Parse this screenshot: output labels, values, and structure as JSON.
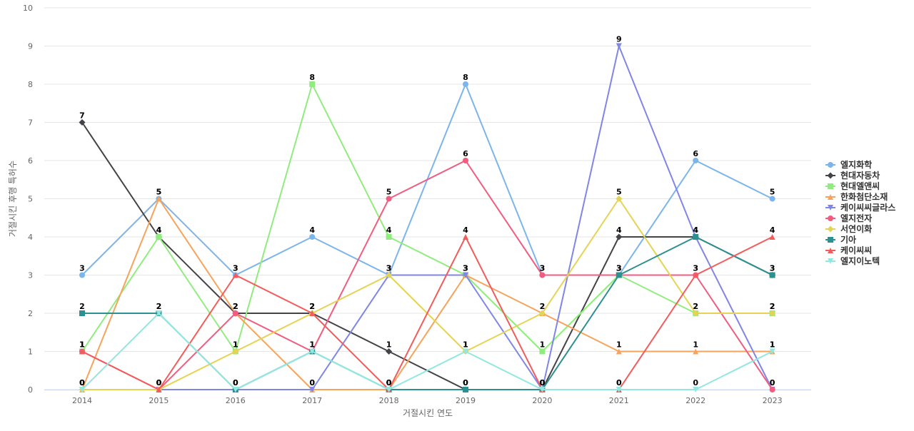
{
  "chart_data": {
    "type": "line",
    "title": "",
    "xlabel": "거절시킨 연도",
    "ylabel": "거절시킨 후행 특허수",
    "x": [
      "2014",
      "2015",
      "2016",
      "2017",
      "2018",
      "2019",
      "2020",
      "2021",
      "2022",
      "2023"
    ],
    "ylim": [
      0,
      10
    ],
    "yticks": [
      0,
      1,
      2,
      3,
      4,
      5,
      6,
      7,
      8,
      9,
      10
    ],
    "grid": true,
    "legend_position": "right",
    "data_labels": true,
    "series": [
      {
        "name": "엘지화학",
        "color": "#7cb5ec",
        "marker": "circle",
        "values": [
          3,
          5,
          3,
          4,
          3,
          8,
          3,
          3,
          6,
          5
        ]
      },
      {
        "name": "현대자동차",
        "color": "#434348",
        "marker": "diamond",
        "values": [
          7,
          4,
          2,
          2,
          1,
          0,
          0,
          4,
          4,
          3
        ]
      },
      {
        "name": "현대엘앤씨",
        "color": "#90ed7d",
        "marker": "square",
        "values": [
          1,
          4,
          1,
          8,
          4,
          3,
          1,
          3,
          2,
          2
        ]
      },
      {
        "name": "한화첨단소재",
        "color": "#f7a35c",
        "marker": "triangle",
        "values": [
          0,
          5,
          2,
          0,
          0,
          3,
          2,
          1,
          1,
          1
        ]
      },
      {
        "name": "케이씨씨글라스",
        "color": "#8085e9",
        "marker": "triangle-down",
        "values": [
          0,
          0,
          0,
          0,
          3,
          3,
          0,
          9,
          4,
          0
        ]
      },
      {
        "name": "엘지전자",
        "color": "#f15c80",
        "marker": "circle",
        "values": [
          1,
          0,
          2,
          1,
          5,
          6,
          3,
          3,
          3,
          0
        ]
      },
      {
        "name": "서연이화",
        "color": "#e4d354",
        "marker": "diamond",
        "values": [
          0,
          0,
          1,
          2,
          3,
          1,
          2,
          5,
          2,
          2
        ]
      },
      {
        "name": "기아",
        "color": "#2b908f",
        "marker": "square",
        "values": [
          2,
          2,
          0,
          1,
          0,
          0,
          0,
          3,
          4,
          3
        ]
      },
      {
        "name": "케이씨씨",
        "color": "#f45b5b",
        "marker": "triangle",
        "values": [
          1,
          0,
          3,
          2,
          0,
          4,
          0,
          0,
          3,
          4
        ]
      },
      {
        "name": "엘지이노텍",
        "color": "#91e8e1",
        "marker": "triangle-down",
        "values": [
          0,
          2,
          0,
          1,
          0,
          1,
          0,
          0,
          0,
          1
        ]
      }
    ]
  }
}
